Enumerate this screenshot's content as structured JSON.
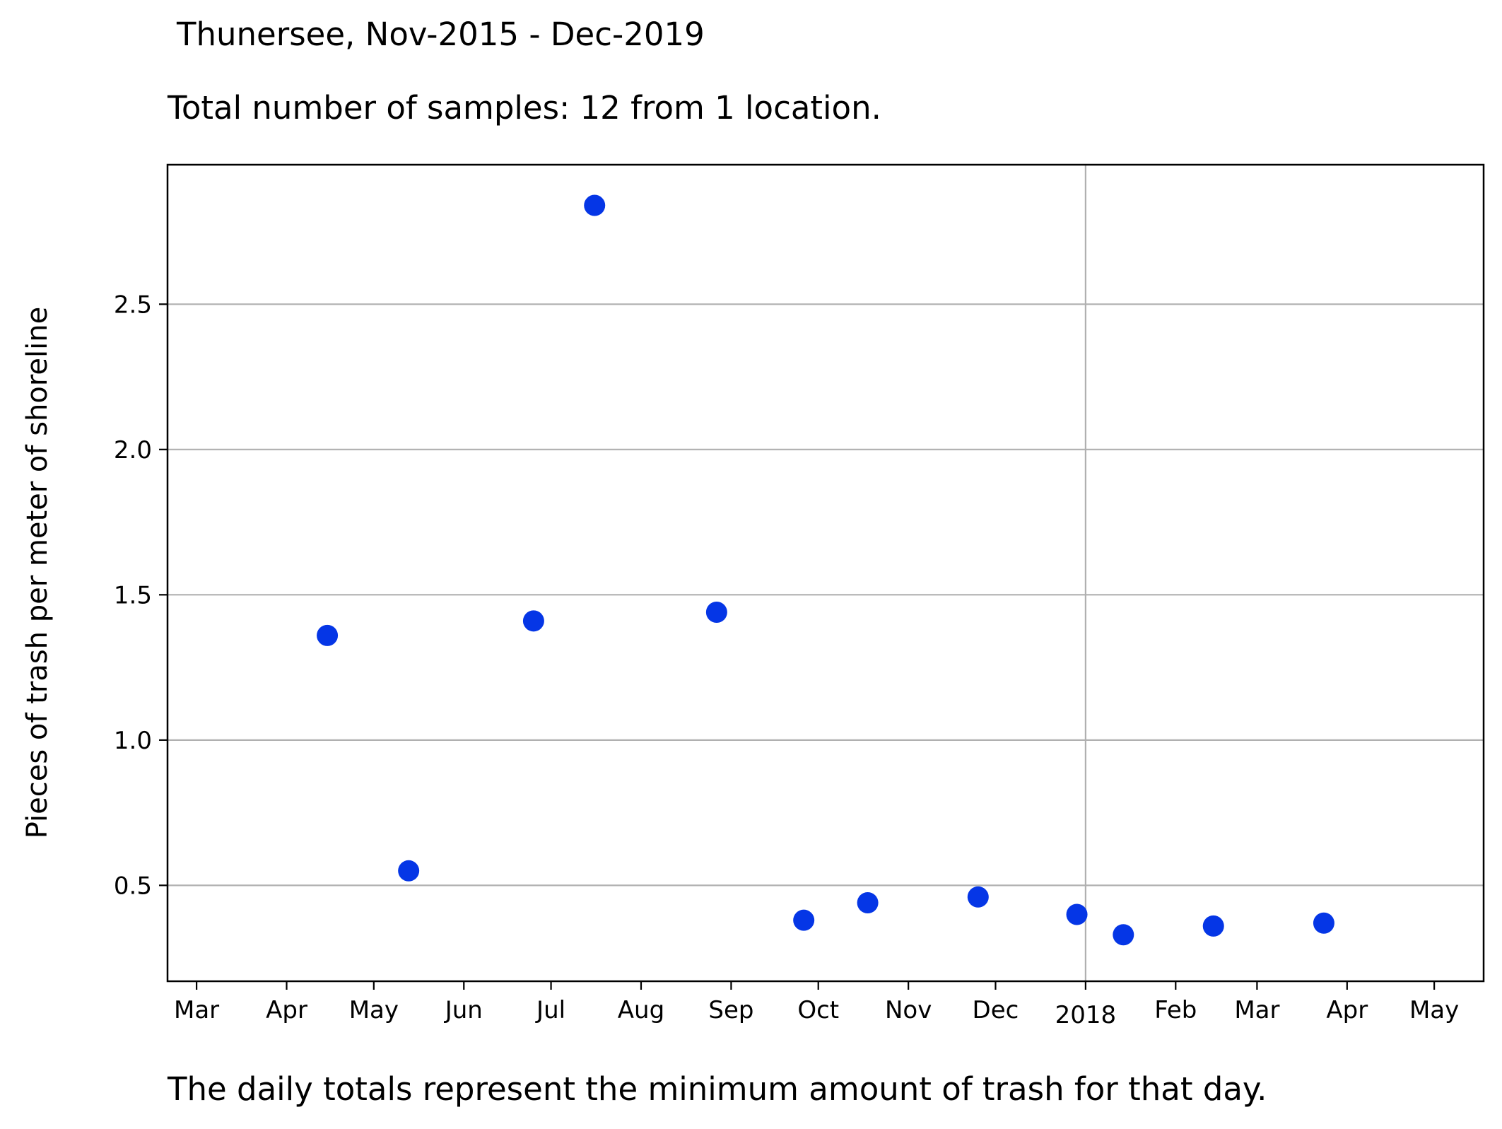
{
  "title": "Thunersee, Nov-2015 - Dec-2019",
  "subtitle": "Total number of samples: 12 from 1 location.",
  "footnote": "The daily totals represent the minimum amount of trash for that day.",
  "chart_data": {
    "type": "scatter",
    "ylabel": "Pieces of trash per meter of shoreline",
    "xlabel": "",
    "xlim": [
      "2017-02-19",
      "2018-05-18"
    ],
    "ylim": [
      0.17,
      2.98
    ],
    "x_ticks": [
      {
        "date": "2017-03-01",
        "label": "Mar"
      },
      {
        "date": "2017-04-01",
        "label": "Apr"
      },
      {
        "date": "2017-05-01",
        "label": "May"
      },
      {
        "date": "2017-06-01",
        "label": "Jun"
      },
      {
        "date": "2017-07-01",
        "label": "Jul"
      },
      {
        "date": "2017-08-01",
        "label": "Aug"
      },
      {
        "date": "2017-09-01",
        "label": "Sep"
      },
      {
        "date": "2017-10-01",
        "label": "Oct"
      },
      {
        "date": "2017-11-01",
        "label": "Nov"
      },
      {
        "date": "2017-12-01",
        "label": "Dec"
      },
      {
        "date": "2018-01-01",
        "label": "2018"
      },
      {
        "date": "2018-02-01",
        "label": "Feb"
      },
      {
        "date": "2018-03-01",
        "label": "Mar"
      },
      {
        "date": "2018-04-01",
        "label": "Apr"
      },
      {
        "date": "2018-05-01",
        "label": "May"
      }
    ],
    "y_ticks": [
      0.5,
      1.0,
      1.5,
      2.0,
      2.5
    ],
    "y_tick_labels": [
      "0.5",
      "1.0",
      "1.5",
      "2.0",
      "2.5"
    ],
    "grid": {
      "horizontal": true,
      "vertical_at": [
        "2018-01-01"
      ]
    },
    "color": "#0536e6",
    "points": [
      {
        "x": "2017-04-15",
        "y": 1.36
      },
      {
        "x": "2017-05-13",
        "y": 0.55
      },
      {
        "x": "2017-06-25",
        "y": 1.41
      },
      {
        "x": "2017-07-16",
        "y": 2.84
      },
      {
        "x": "2017-08-27",
        "y": 1.44
      },
      {
        "x": "2017-09-26",
        "y": 0.38
      },
      {
        "x": "2017-10-18",
        "y": 0.44
      },
      {
        "x": "2017-11-25",
        "y": 0.46
      },
      {
        "x": "2017-12-29",
        "y": 0.4
      },
      {
        "x": "2018-01-14",
        "y": 0.33
      },
      {
        "x": "2018-02-14",
        "y": 0.36
      },
      {
        "x": "2018-03-24",
        "y": 0.37
      }
    ]
  }
}
